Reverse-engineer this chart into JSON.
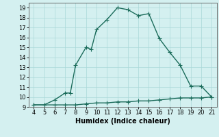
{
  "x_main": [
    4,
    5,
    6,
    7,
    7.5,
    8,
    9,
    9.5,
    10,
    11,
    12,
    13,
    14,
    15,
    16,
    17,
    18,
    19,
    20,
    21
  ],
  "y_main": [
    9.2,
    9.2,
    9.7,
    10.4,
    10.4,
    13.2,
    15.0,
    14.8,
    16.8,
    17.8,
    19.0,
    18.8,
    18.2,
    18.4,
    15.9,
    14.5,
    13.2,
    11.1,
    11.1,
    10.0
  ],
  "x_flat": [
    4,
    5,
    6,
    7,
    8,
    9,
    10,
    11,
    12,
    13,
    14,
    15,
    16,
    17,
    18,
    19,
    20,
    21
  ],
  "y_flat": [
    9.2,
    9.2,
    9.2,
    9.2,
    9.2,
    9.3,
    9.4,
    9.4,
    9.5,
    9.5,
    9.6,
    9.6,
    9.7,
    9.8,
    9.9,
    9.9,
    9.9,
    10.0
  ],
  "line_color": "#1a6b5a",
  "bg_color": "#d4f0f0",
  "grid_color": "#aad8d8",
  "xlim": [
    3.5,
    21.5
  ],
  "ylim": [
    9,
    19.5
  ],
  "xticks": [
    4,
    5,
    6,
    7,
    8,
    9,
    10,
    11,
    12,
    13,
    14,
    15,
    16,
    17,
    18,
    19,
    20,
    21
  ],
  "yticks": [
    9,
    10,
    11,
    12,
    13,
    14,
    15,
    16,
    17,
    18,
    19
  ],
  "xlabel": "Humidex (Indice chaleur)",
  "marker": "+",
  "markersize": 4,
  "linewidth": 1.0
}
